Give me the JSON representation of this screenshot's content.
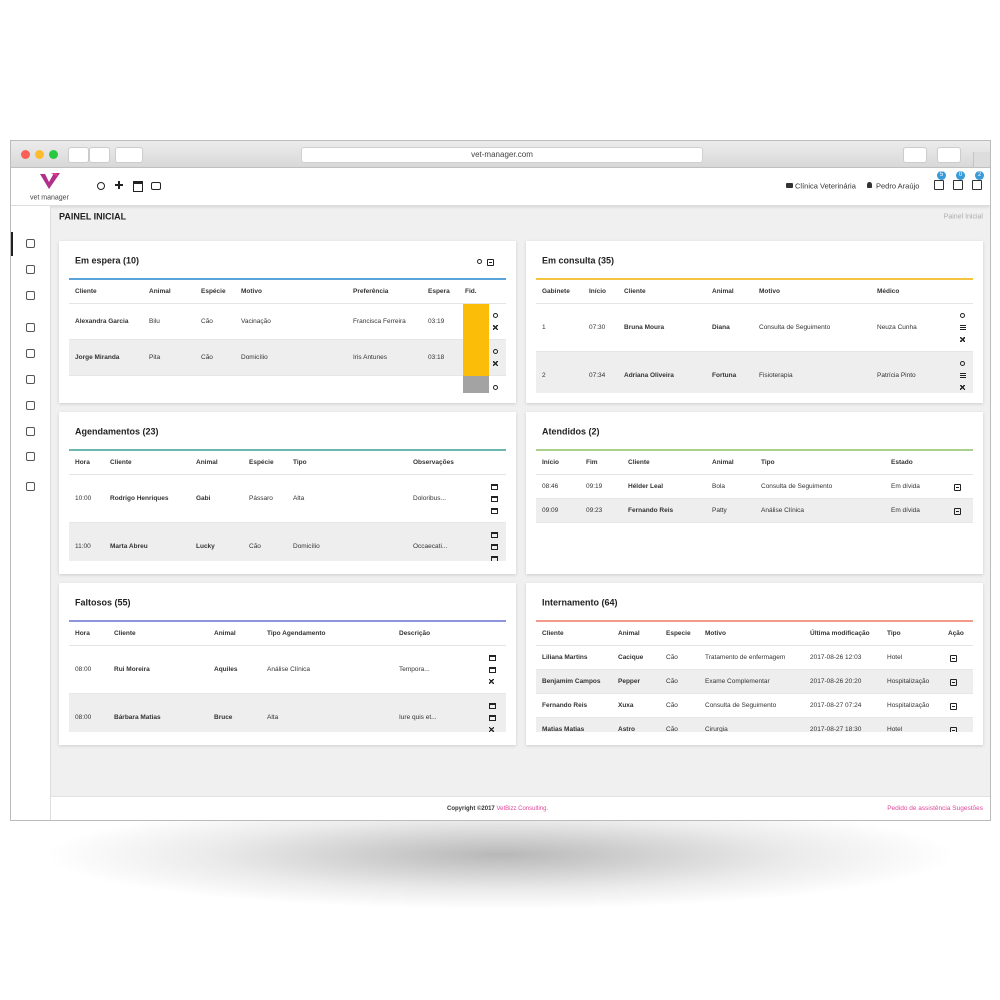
{
  "browser": {
    "url": "vet-manager.com"
  },
  "header": {
    "logo": "vet manager",
    "clinic": "Clínica Veterinária",
    "user": "Pedro Araújo",
    "badges": [
      "5",
      "0",
      "2"
    ]
  },
  "page": {
    "title": "PAINEL INICIAL",
    "breadcrumb": "Painel Inicial"
  },
  "panels": [
    {
      "title": "Em espera (10)",
      "columns": [
        "Cliente",
        "Animal",
        "Espécie",
        "Motivo",
        "Preferência",
        "Espera",
        "Fid."
      ],
      "rows": [
        [
          "Alexandra Garcia",
          "Bilu",
          "Cão",
          "Vacinação",
          "Francisca Ferreira",
          "03:19"
        ],
        [
          "Jorge Miranda",
          "Pita",
          "Cão",
          "Domicílio",
          "Iris Antunes",
          "03:18"
        ]
      ]
    },
    {
      "title": "Em consulta (35)",
      "columns": [
        "Gabinete",
        "Início",
        "Cliente",
        "Animal",
        "Motivo",
        "Médico"
      ],
      "rows": [
        [
          "1",
          "07:30",
          "Bruna Moura",
          "Diana",
          "Consulta de Seguimento",
          "Neuza Cunha"
        ],
        [
          "2",
          "07:34",
          "Adriana Oliveira",
          "Fortuna",
          "Fisioterapia",
          "Patrícia Pinto"
        ]
      ]
    },
    {
      "title": "Agendamentos (23)",
      "columns": [
        "Hora",
        "Cliente",
        "Animal",
        "Espécie",
        "Tipo",
        "Observações"
      ],
      "rows": [
        [
          "10:00",
          "Rodrigo Henriques",
          "Gabi",
          "Pássaro",
          "Alta",
          "Doloribus..."
        ],
        [
          "11:00",
          "Marta Abreu",
          "Lucky",
          "Cão",
          "Domicílio",
          "Occaecati..."
        ]
      ]
    },
    {
      "title": "Atendidos (2)",
      "columns": [
        "Início",
        "Fim",
        "Cliente",
        "Animal",
        "Tipo",
        "Estado"
      ],
      "rows": [
        [
          "08:46",
          "09:19",
          "Hélder Leal",
          "Bola",
          "Consulta de Seguimento",
          "Em dívida"
        ],
        [
          "09:09",
          "09:23",
          "Fernando Reis",
          "Patty",
          "Análise Clínica",
          "Em dívida"
        ]
      ]
    },
    {
      "title": "Faltosos (55)",
      "columns": [
        "Hora",
        "Cliente",
        "Animal",
        "Tipo Agendamento",
        "Descrição"
      ],
      "rows": [
        [
          "08:00",
          "Rui Moreira",
          "Aquiles",
          "Análise Clínica",
          "Tempora..."
        ],
        [
          "08:00",
          "Bárbara Matias",
          "Bruce",
          "Alta",
          "Iure quis et..."
        ]
      ]
    },
    {
      "title": "Internamento (64)",
      "columns": [
        "Cliente",
        "Animal",
        "Especie",
        "Motivo",
        "Última modificação",
        "Tipo",
        "Ação"
      ],
      "rows": [
        [
          "Liliana Martins",
          "Cacique",
          "Cão",
          "Tratamento de enfermagem",
          "2017-08-26 12:03",
          "Hotel"
        ],
        [
          "Benjamim Campos",
          "Pepper",
          "Cão",
          "Exame Complementar",
          "2017-08-26 20:20",
          "Hospitalização"
        ],
        [
          "Fernando Reis",
          "Xuxa",
          "Cão",
          "Consulta de Seguimento",
          "2017-08-27 07:24",
          "Hospitalização"
        ],
        [
          "Matias Matias",
          "Astro",
          "Cão",
          "Cirurgia",
          "2017-08-27 18:30",
          "Hotel"
        ]
      ]
    }
  ],
  "footer": {
    "copyright": "Copyright ©2017",
    "company": "VetBizz Consulting.",
    "links": [
      "Pedido de assistência",
      "Sugestões"
    ]
  }
}
